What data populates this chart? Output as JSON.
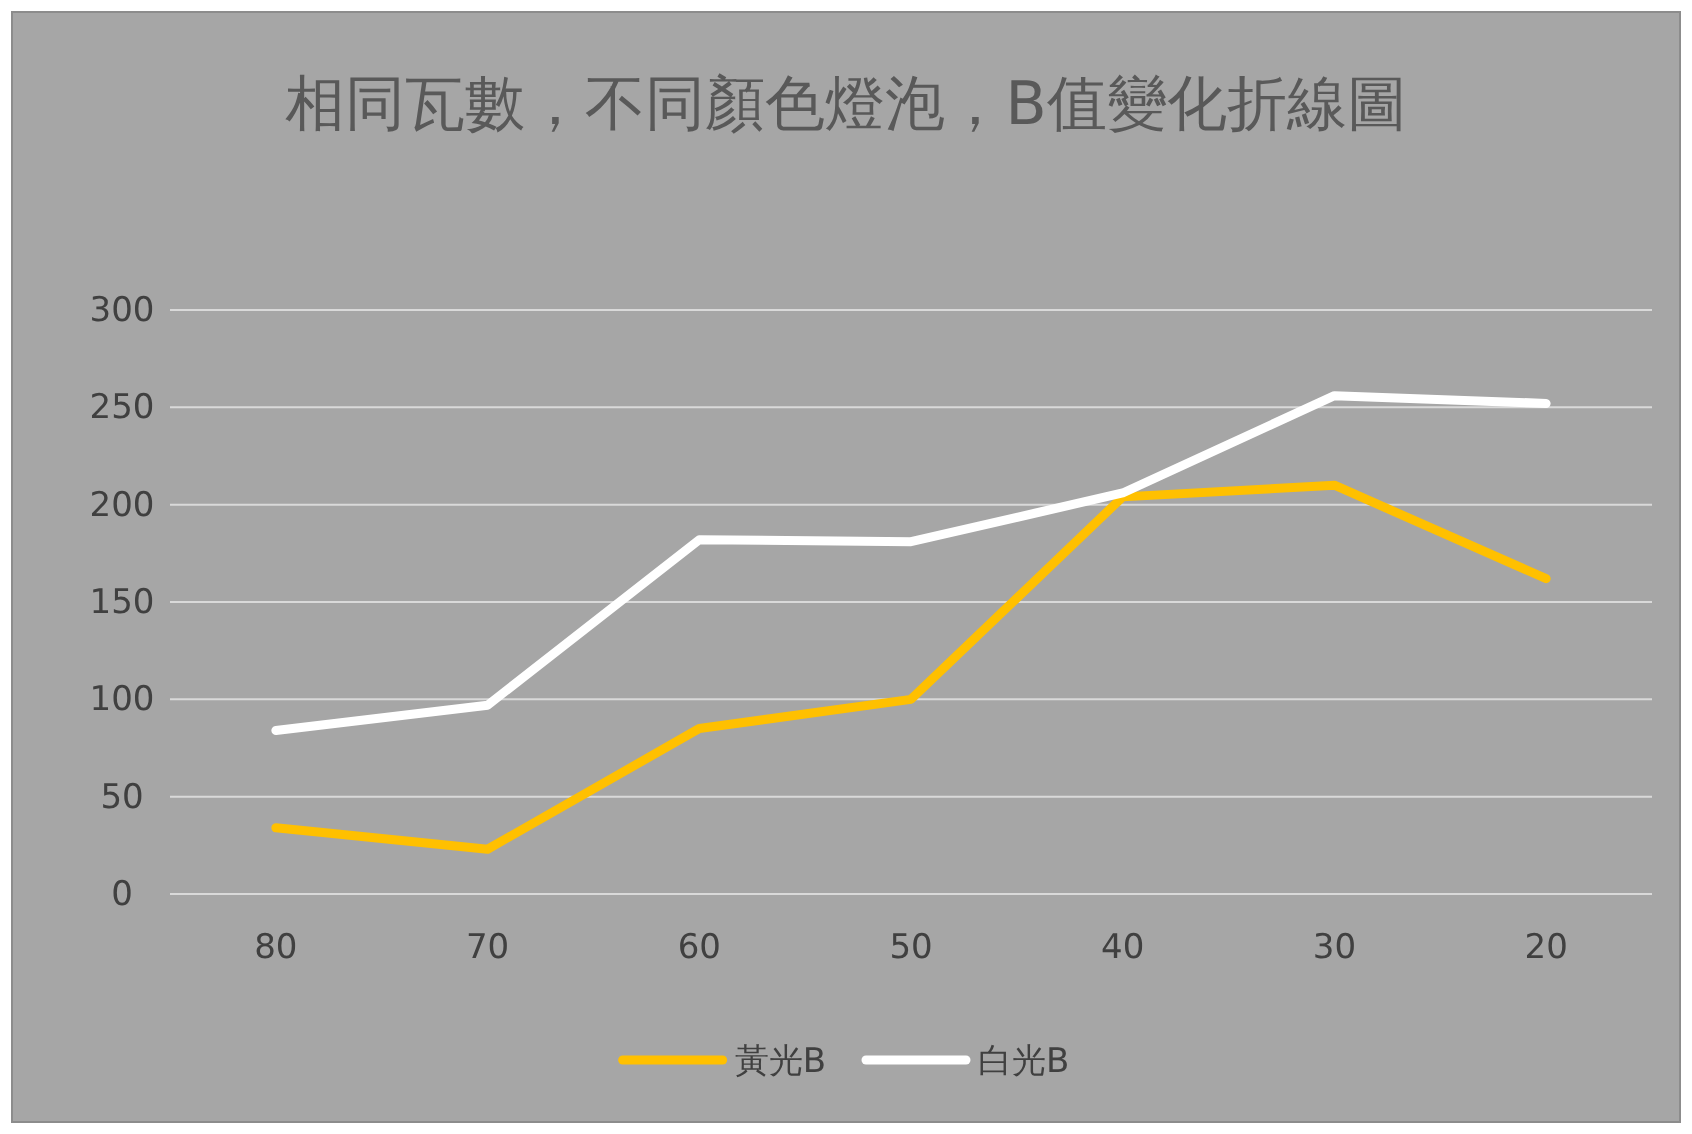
{
  "chart_data": {
    "type": "line",
    "title": "相同瓦數，不同顏色燈泡，B值變化折線圖",
    "categories": [
      "80",
      "70",
      "60",
      "50",
      "40",
      "30",
      "20"
    ],
    "series": [
      {
        "name": "黃光B",
        "color": "#ffc000",
        "values": [
          34,
          23,
          85,
          100,
          204,
          210,
          162
        ]
      },
      {
        "name": "白光B",
        "color": "#ffffff",
        "values": [
          84,
          97,
          182,
          181,
          206,
          256,
          252
        ]
      }
    ],
    "ylim": [
      0,
      300
    ],
    "yticks": [
      0,
      50,
      100,
      150,
      200,
      250,
      300
    ],
    "grid": "y",
    "legend": "bottom",
    "marker": "none",
    "line_style": "solid"
  }
}
